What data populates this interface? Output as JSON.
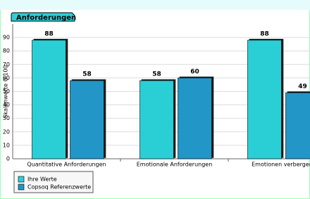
{
  "chart_data": {
    "type": "bar",
    "title": "Anforderungen",
    "y_label": "Skalenwerte 0-100",
    "categories": [
      "Quantitative Anforderungen",
      "Emotionale Anforderungen",
      "Emotionen verbergen"
    ],
    "series": [
      {
        "name": "Ihre Werte",
        "color": "#2ccfd6",
        "values": [
          88,
          58,
          88
        ]
      },
      {
        "name": "Copsoq Referenzwerte",
        "color": "#2196c6",
        "values": [
          58,
          60,
          49
        ]
      }
    ],
    "value_label_color": "#1fb9c9",
    "ylim": [
      0,
      100
    ],
    "yticks": [
      0,
      10,
      20,
      30,
      40,
      50,
      60,
      70,
      80,
      90
    ],
    "grid": true
  }
}
